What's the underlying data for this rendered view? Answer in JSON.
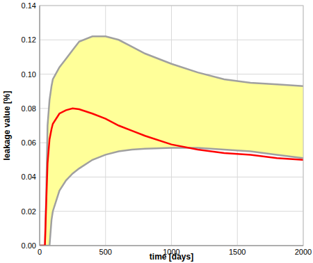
{
  "chart_data": {
    "type": "line",
    "x_label": "time [days]",
    "y_label": "leakage value [%]",
    "x": [
      0,
      40,
      50,
      60,
      75,
      90,
      100,
      150,
      200,
      250,
      300,
      400,
      500,
      600,
      700,
      800,
      1000,
      1200,
      1400,
      1600,
      1800,
      2000
    ],
    "series": [
      {
        "type": "band",
        "color": "#ffff99",
        "values": [
          0,
          0,
          0.03,
          0.07,
          0.085,
          0.093,
          0.097,
          0.104,
          0.109,
          0.114,
          0.119,
          0.122,
          0.122,
          0.12,
          0.116,
          0.112,
          0.106,
          0.101,
          0.097,
          0.095,
          0.094,
          0.093
        ],
        "low": [
          0,
          0,
          0,
          0,
          0,
          0.015,
          0.02,
          0.032,
          0.038,
          0.042,
          0.045,
          0.05,
          0.053,
          0.055,
          0.056,
          0.0565,
          0.057,
          0.057,
          0.056,
          0.055,
          0.053,
          0.051
        ]
      },
      {
        "type": "line",
        "color": "#ff0000",
        "values": [
          0,
          0,
          0.025,
          0.048,
          0.062,
          0.068,
          0.071,
          0.077,
          0.079,
          0.08,
          0.0795,
          0.077,
          0.074,
          0.07,
          0.067,
          0.064,
          0.059,
          0.056,
          0.054,
          0.053,
          0.051,
          0.05
        ]
      }
    ],
    "xlim": [
      0,
      2000
    ],
    "xticks": [
      0,
      500,
      1000,
      1500,
      2000
    ],
    "ylim": [
      0,
      0.14
    ],
    "yticks": [
      {
        "value": 0,
        "label": "0.00"
      },
      0.02,
      0.04,
      0.06,
      0.08,
      {
        "value": 0.1,
        "label": "0.10"
      },
      0.12,
      0.14
    ],
    "grid": true
  }
}
